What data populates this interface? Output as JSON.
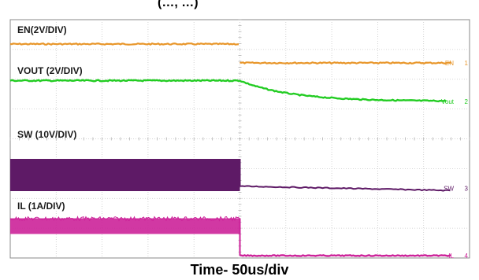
{
  "page_title": "(…, …)",
  "chart_data": {
    "type": "line",
    "title": "(…, …)",
    "xlabel": "Time- 50us/div",
    "x_range_us": [
      -250,
      250
    ],
    "grid": true,
    "event_time_us": 0,
    "series": [
      {
        "name": "EN(2V/DIV)",
        "channel": "1",
        "end_tag": "EN",
        "color": "#e8962a",
        "description_values": {
          "before_v": 2,
          "after_v": 0
        }
      },
      {
        "name": "VOUT (2V/DIV)",
        "channel": "2",
        "end_tag": "Vout",
        "color": "#22cc22",
        "description_values": {
          "before_v": 1.8,
          "after_v": 0.3,
          "decay_tau_us": 55
        }
      },
      {
        "name": "SW (10V/DIV)",
        "channel": "3",
        "end_tag": "SW",
        "color": "#5e1a66",
        "description_values": {
          "before_low_v": 0,
          "before_high_v": 5,
          "after_v": 0.4
        }
      },
      {
        "name": "IL (1A/DIV)",
        "channel": "4",
        "end_tag": "IL",
        "color": "#cc2299",
        "description_values": {
          "before_a": 1.5,
          "ripple_a": 0.4,
          "after_a": 0
        }
      }
    ]
  }
}
